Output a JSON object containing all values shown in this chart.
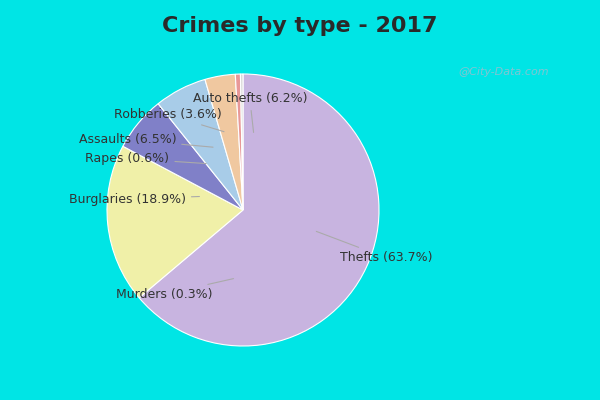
{
  "title": "Crimes by type - 2017",
  "slices": [
    {
      "label": "Thefts",
      "pct": 63.7,
      "color": "#c8b4e0"
    },
    {
      "label": "Burglaries",
      "pct": 18.9,
      "color": "#f0f0a8"
    },
    {
      "label": "Assaults",
      "pct": 6.5,
      "color": "#8080c8"
    },
    {
      "label": "Auto thefts",
      "pct": 6.2,
      "color": "#a8cce8"
    },
    {
      "label": "Robberies",
      "pct": 3.6,
      "color": "#f0c8a0"
    },
    {
      "label": "Rapes",
      "pct": 0.6,
      "color": "#e89898"
    },
    {
      "label": "Murders",
      "pct": 0.3,
      "color": "#d8d8d8"
    }
  ],
  "bg_cyan": "#00e5e5",
  "bg_main": "#d0ecd8",
  "title_fontsize": 16,
  "label_fontsize": 9,
  "startangle": 90,
  "watermark": "@City-Data.com",
  "annotations": [
    {
      "label": "Thefts (63.7%)",
      "lxy": [
        1.05,
        -0.35
      ],
      "axy": [
        0.52,
        -0.15
      ]
    },
    {
      "label": "Murders (0.3%)",
      "lxy": [
        -0.58,
        -0.62
      ],
      "axy": [
        -0.05,
        -0.5
      ]
    },
    {
      "label": "Burglaries (18.9%)",
      "lxy": [
        -0.85,
        0.08
      ],
      "axy": [
        -0.3,
        0.1
      ]
    },
    {
      "label": "Rapes (0.6%)",
      "lxy": [
        -0.85,
        0.38
      ],
      "axy": [
        -0.25,
        0.34
      ]
    },
    {
      "label": "Assaults (6.5%)",
      "lxy": [
        -0.85,
        0.52
      ],
      "axy": [
        -0.2,
        0.46
      ]
    },
    {
      "label": "Robberies (3.6%)",
      "lxy": [
        -0.55,
        0.7
      ],
      "axy": [
        -0.12,
        0.57
      ]
    },
    {
      "label": "Auto thefts (6.2%)",
      "lxy": [
        0.05,
        0.82
      ],
      "axy": [
        0.08,
        0.55
      ]
    }
  ]
}
